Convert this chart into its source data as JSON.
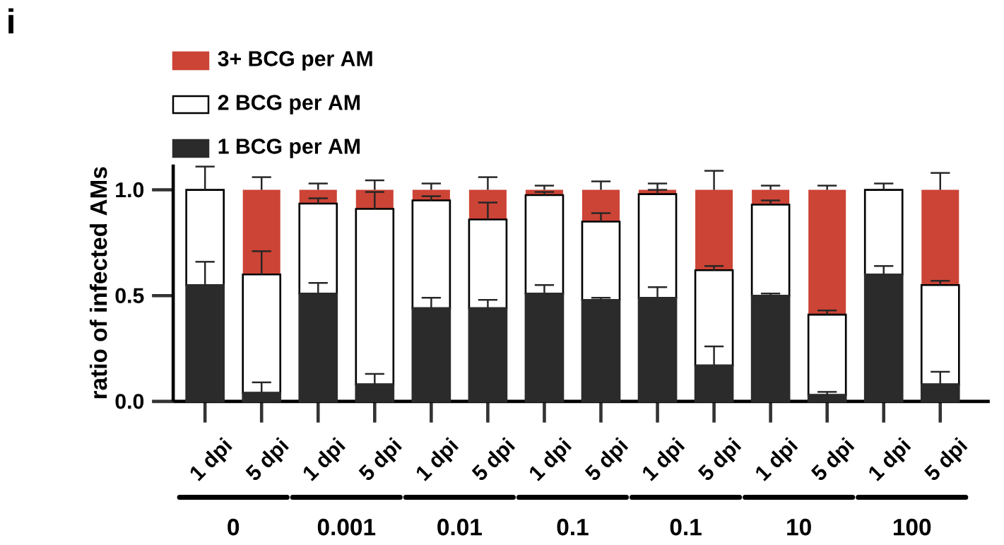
{
  "chart_data": {
    "type": "bar",
    "stacked": true,
    "ylabel": "ratio of infected AMs",
    "categories": [
      "1 dpi",
      "5 dpi",
      "1 dpi",
      "5 dpi",
      "1 dpi",
      "5 dpi",
      "1 dpi",
      "5 dpi",
      "1 dpi",
      "5 dpi",
      "1 dpi",
      "5 dpi",
      "1 dpi",
      "5 dpi"
    ],
    "series": [
      {
        "name": "1 BCG per AM",
        "color": "#2b2b2b",
        "values": [
          0.55,
          0.04,
          0.51,
          0.08,
          0.44,
          0.44,
          0.51,
          0.48,
          0.49,
          0.17,
          0.5,
          0.03,
          0.6,
          0.08
        ],
        "errors": [
          [
            0.55,
            0.66
          ],
          [
            0.04,
            0.09
          ],
          [
            0.51,
            0.56
          ],
          [
            0.08,
            0.13
          ],
          [
            0.44,
            0.49
          ],
          [
            0.44,
            0.48
          ],
          [
            0.51,
            0.55
          ],
          [
            0.48,
            0.49
          ],
          [
            0.49,
            0.54
          ],
          [
            0.17,
            0.26
          ],
          [
            0.5,
            0.51
          ],
          [
            0.03,
            0.045
          ],
          [
            0.6,
            0.64
          ],
          [
            0.08,
            0.14
          ]
        ]
      },
      {
        "name": "2 BCG per AM",
        "color": "#ffffff",
        "values": [
          0.45,
          0.56,
          0.425,
          0.83,
          0.51,
          0.42,
          0.465,
          0.37,
          0.49,
          0.45,
          0.43,
          0.38,
          0.4,
          0.47
        ],
        "errors": [
          [
            1.0,
            1.11
          ],
          [
            0.6,
            0.71
          ],
          [
            0.935,
            0.96
          ],
          [
            0.91,
            0.99
          ],
          [
            0.95,
            0.97
          ],
          [
            0.86,
            0.94
          ],
          [
            0.975,
            0.99
          ],
          [
            0.85,
            0.89
          ],
          [
            0.98,
            1.0
          ],
          [
            0.62,
            0.64
          ],
          [
            0.93,
            0.95
          ],
          [
            0.41,
            0.43
          ],
          [
            1.0,
            1.03
          ],
          [
            0.55,
            0.57
          ]
        ]
      },
      {
        "name": "3+ BCG per AM",
        "color": "#cc4436",
        "values": [
          0,
          0.4,
          0.065,
          0.09,
          0.05,
          0.14,
          0.025,
          0.15,
          0.02,
          0.38,
          0.07,
          0.59,
          0,
          0.45
        ],
        "errors": [
          null,
          [
            1.0,
            1.06
          ],
          [
            1.0,
            1.03
          ],
          [
            1.0,
            1.045
          ],
          [
            1.0,
            1.03
          ],
          [
            1.0,
            1.06
          ],
          [
            1.0,
            1.02
          ],
          [
            1.0,
            1.04
          ],
          [
            1.0,
            1.03
          ],
          [
            1.0,
            1.09
          ],
          [
            1.0,
            1.02
          ],
          [
            1.0,
            1.02
          ],
          null,
          [
            1.0,
            1.08
          ]
        ]
      }
    ],
    "ylim": [
      0,
      1.12
    ],
    "yticks": [
      {
        "value": 0,
        "label": "0.0"
      },
      {
        "value": 0.5,
        "label": "0.5"
      },
      {
        "value": 1,
        "label": "1.0"
      }
    ],
    "legend": "top left",
    "annotations": [
      "i",
      "0",
      "0.001",
      "0.01",
      "0.1",
      "0.1",
      "10",
      "100"
    ]
  }
}
